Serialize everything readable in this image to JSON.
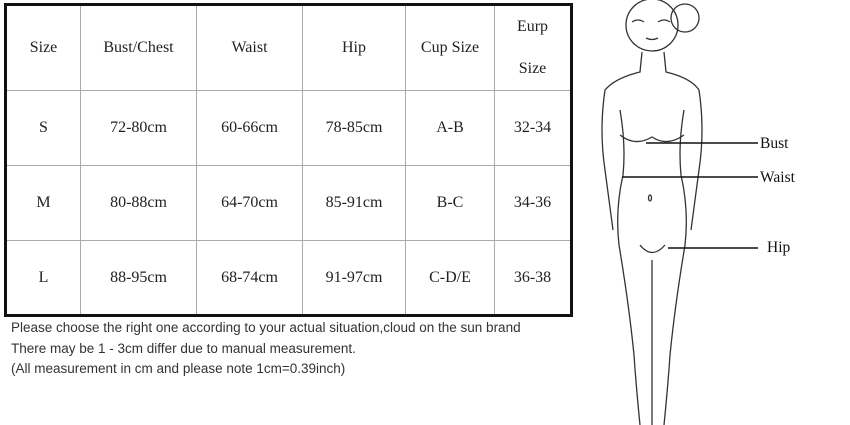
{
  "table": {
    "headers": [
      "Size",
      "Bust/Chest",
      "Waist",
      "Hip",
      "Cup Size"
    ],
    "eurp_header": [
      "Eurp",
      "Size"
    ],
    "rows": [
      [
        "S",
        "72-80cm",
        "60-66cm",
        "78-85cm",
        "A-B",
        "32-34"
      ],
      [
        "M",
        "80-88cm",
        "64-70cm",
        "85-91cm",
        "B-C",
        "34-36"
      ],
      [
        "L",
        "88-95cm",
        "68-74cm",
        "91-97cm",
        "C-D/E",
        "36-38"
      ]
    ]
  },
  "notes": [
    "Please choose the right one according to your actual situation,cloud on the sun brand",
    "There may be 1 - 3cm differ due to manual measurement.",
    "(All measurement in cm and please note 1cm=0.39inch)"
  ],
  "figure": {
    "labels": {
      "bust": "Bust",
      "waist": "Waist",
      "hip": "Hip"
    }
  }
}
